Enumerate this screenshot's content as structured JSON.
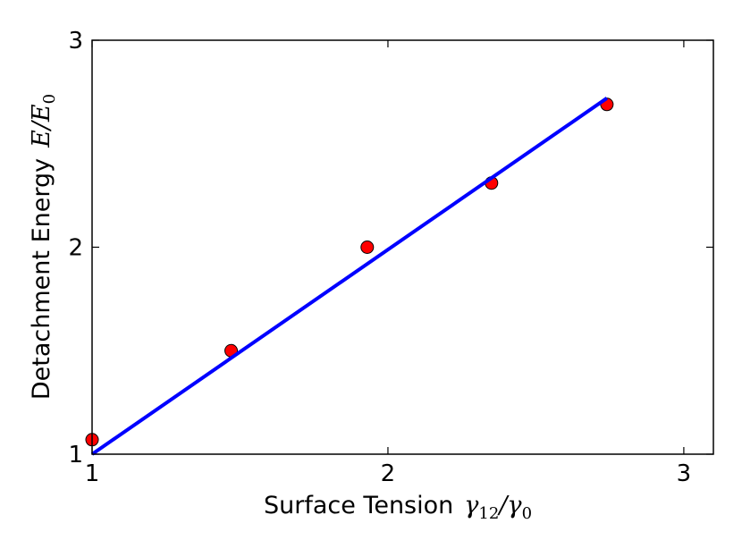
{
  "chart_data": {
    "type": "scatter",
    "xlabel": {
      "text": "Surface Tension",
      "symbol": "γ",
      "sub1": "12",
      "slash": "/",
      "symbol2": "γ",
      "sub2": "0"
    },
    "ylabel": {
      "text": "Detachment Energy",
      "symbol": "E",
      "slash": "/",
      "symbol2": "E",
      "sub2": "0"
    },
    "xlim": [
      1,
      3.1
    ],
    "ylim": [
      1,
      3
    ],
    "xticks": [
      1,
      2,
      3
    ],
    "yticks": [
      1,
      2,
      3
    ],
    "xtick_labels": [
      "1",
      "2",
      "3"
    ],
    "ytick_labels": [
      "1",
      "2",
      "3"
    ],
    "grid": false,
    "series": [
      {
        "kind": "points",
        "color": "#ff0000",
        "edge_color": "#000000",
        "x": [
          1.0,
          1.47,
          1.93,
          2.35,
          2.74
        ],
        "y": [
          1.07,
          1.5,
          2.0,
          2.31,
          2.69
        ]
      },
      {
        "kind": "line",
        "color": "#0000ff",
        "x": [
          1.0,
          2.74
        ],
        "y": [
          1.0,
          2.72
        ]
      }
    ]
  }
}
